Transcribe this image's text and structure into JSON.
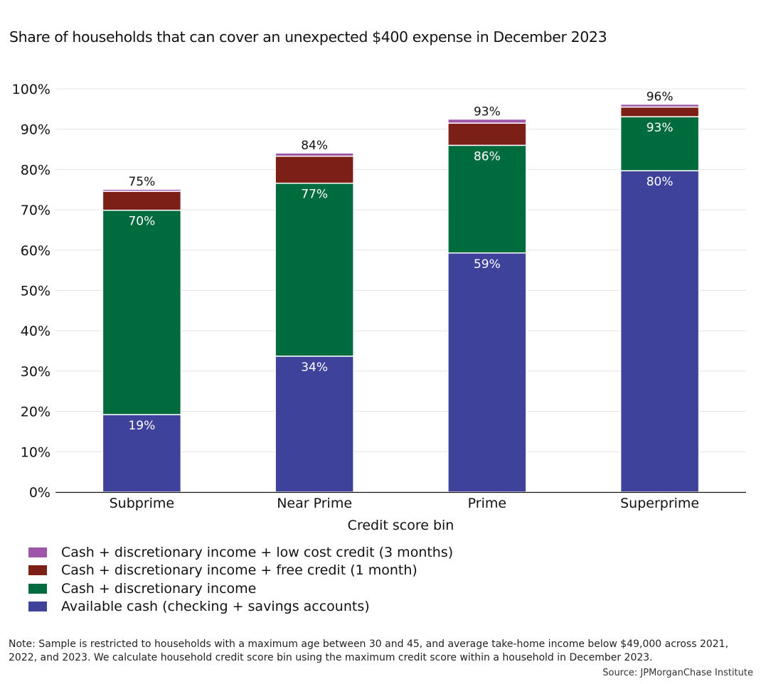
{
  "title": "Share of households that can cover an unexpected $400 expense in December 2023",
  "note": "Note: Sample is restricted to households with a maximum age between 30 and 45, and average take-home income below $49,000 across 2021, 2022, and 2023. We calculate household credit score bin using the maximum credit score within a household in December 2023.",
  "source": "Source: JPMorganChase Institute",
  "chart_data": {
    "type": "bar",
    "stacked": true,
    "categories": [
      "Subprime",
      "Near Prime",
      "Prime",
      "Superprime"
    ],
    "xlabel": "Credit score bin",
    "ylabel": "",
    "ylim": [
      0,
      100
    ],
    "yticks": [
      "0%",
      "10%",
      "20%",
      "30%",
      "40%",
      "50%",
      "60%",
      "70%",
      "80%",
      "90%",
      "100%"
    ],
    "grid": "horizontal",
    "legend_position": "bottom-left",
    "series": [
      {
        "name": "Available cash (checking + savings accounts)",
        "color": "#3f429b",
        "values": [
          19.2,
          33.7,
          59.3,
          79.7
        ],
        "labels": [
          "19%",
          "34%",
          "59%",
          "80%"
        ]
      },
      {
        "name": "Cash + discretionary income",
        "color": "#006b3c",
        "cumulative": [
          69.9,
          76.6,
          86.0,
          93.1
        ],
        "labels": [
          "70%",
          "77%",
          "86%",
          "93%"
        ]
      },
      {
        "name": "Cash + discretionary income + free credit (1 month)",
        "color": "#7c1f17",
        "cumulative": [
          74.6,
          83.3,
          91.5,
          95.5
        ]
      },
      {
        "name": "Cash + discretionary income + low cost credit (3 months)",
        "color": "#9e56a8",
        "cumulative": [
          75.1,
          84.1,
          92.5,
          96.2
        ],
        "labels": [
          "75%",
          "84%",
          "93%",
          "96%"
        ]
      }
    ]
  }
}
